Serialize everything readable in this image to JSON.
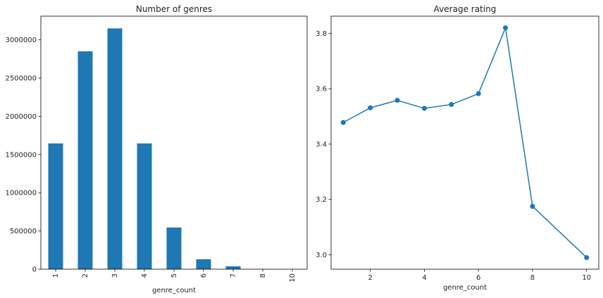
{
  "chart_data": [
    {
      "type": "bar",
      "title": "Number of genres",
      "xlabel": "genre_count",
      "ylabel": "",
      "categories": [
        "1",
        "2",
        "3",
        "4",
        "5",
        "6",
        "7",
        "8",
        "10"
      ],
      "values": [
        1645000,
        2850000,
        3150000,
        1645000,
        545000,
        130000,
        38000,
        3000,
        500
      ],
      "ylim": [
        0,
        3310000
      ],
      "yticks": [
        0,
        500000,
        1000000,
        1500000,
        2000000,
        2500000,
        3000000
      ],
      "ytick_labels": [
        "0",
        "500000",
        "1000000",
        "1500000",
        "2000000",
        "2500000",
        "3000000"
      ],
      "color": "#1f77b4",
      "grid": false
    },
    {
      "type": "line",
      "title": "Average rating",
      "xlabel": "genre_count",
      "ylabel": "",
      "x": [
        1,
        2,
        3,
        4,
        5,
        6,
        7,
        8,
        10
      ],
      "y": [
        3.478,
        3.531,
        3.558,
        3.529,
        3.543,
        3.582,
        3.82,
        3.175,
        2.99
      ],
      "xlim": [
        0.55,
        10.45
      ],
      "ylim": [
        2.948,
        3.862
      ],
      "xticks": [
        2,
        4,
        6,
        8,
        10
      ],
      "xtick_labels": [
        "2",
        "4",
        "6",
        "8",
        "10"
      ],
      "yticks": [
        3.0,
        3.2,
        3.4,
        3.6,
        3.8
      ],
      "ytick_labels": [
        "3.0",
        "3.2",
        "3.4",
        "3.6",
        "3.8"
      ],
      "color": "#1f77b4",
      "marker": "circle",
      "grid": false
    }
  ]
}
